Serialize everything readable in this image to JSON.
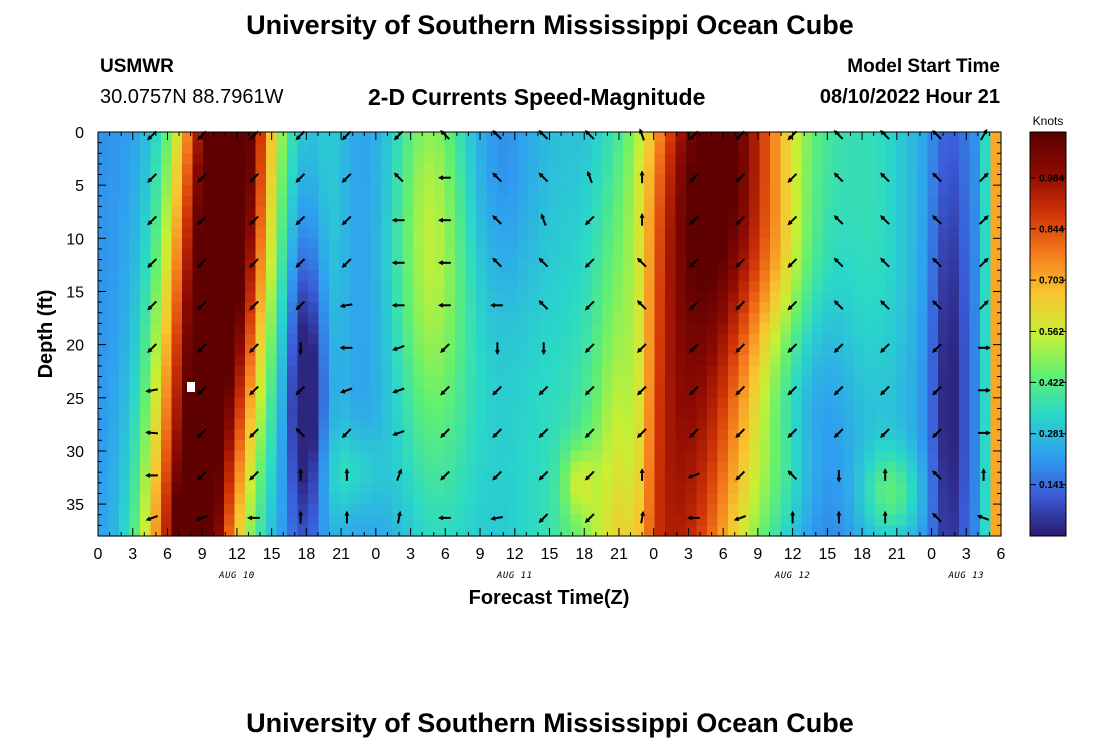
{
  "header": {
    "title": "University of Southern Mississippi Ocean Cube",
    "station": "USMWR",
    "coords": "30.0757N  88.7961W",
    "subtitle": "2-D Currents Speed-Magnitude",
    "model_start_label": "Model Start Time",
    "model_start_value": "08/10/2022 Hour 21"
  },
  "footer": {
    "title": "University of Southern Mississippi Ocean Cube"
  },
  "chart_data": {
    "type": "heatmap",
    "xlabel": "Forecast Time(Z)",
    "ylabel": "Depth (ft)",
    "x_range_hours": [
      0,
      78
    ],
    "y_range_ft": [
      0,
      38
    ],
    "x_tick_labels": [
      "0",
      "3",
      "6",
      "9",
      "12",
      "15",
      "18",
      "21",
      "0",
      "3",
      "6",
      "9",
      "12",
      "15",
      "18",
      "21",
      "0",
      "3",
      "6",
      "9",
      "12",
      "15",
      "18",
      "21",
      "0",
      "3",
      "6"
    ],
    "y_ticks": [
      0,
      5,
      10,
      15,
      20,
      25,
      30,
      35
    ],
    "day_labels": [
      {
        "text": "AUG 10",
        "hour": 12
      },
      {
        "text": "AUG 11",
        "hour": 36
      },
      {
        "text": "AUG 12",
        "hour": 60
      },
      {
        "text": "AUG 13",
        "hour": 75
      }
    ],
    "colorbar": {
      "label": "Knots",
      "min": 0,
      "max": 1.11,
      "tick_values": [
        0.141,
        0.281,
        0.422,
        0.562,
        0.703,
        0.844,
        0.984
      ],
      "tick_labels": [
        "0.141",
        "0.281",
        "0.422",
        "0.562",
        "0.703",
        "0.844",
        "0.984"
      ],
      "colors": [
        "#2a1a6e",
        "#3a5bd6",
        "#2fa0f0",
        "#2ad8c8",
        "#62f070",
        "#c8f034",
        "#f8c530",
        "#f57a1c",
        "#cf3206",
        "#8c0a02",
        "#5a0000"
      ]
    },
    "speed_features": [
      {
        "t": 9.5,
        "d": 20,
        "st": 3.0,
        "sd": 60,
        "amp": 1.0,
        "slope": -0.07
      },
      {
        "t": 12.5,
        "d": 8,
        "st": 2.2,
        "sd": 16,
        "amp": 0.2
      },
      {
        "t": 8.5,
        "d": 36,
        "st": 1.2,
        "sd": 3,
        "amp": 0.2
      },
      {
        "t": 52,
        "d": 15,
        "st": 5.0,
        "sd": 60,
        "amp": 0.8,
        "slope": -0.1
      },
      {
        "t": 53,
        "d": 4,
        "st": 4.0,
        "sd": 10,
        "amp": 0.18
      },
      {
        "t": 20,
        "d": 3,
        "st": 1.3,
        "sd": 40,
        "amp": 0.1
      },
      {
        "t": 28.5,
        "d": 8,
        "st": 2.2,
        "sd": 15,
        "amp": 0.22
      },
      {
        "t": 22,
        "d": 32,
        "st": 2.0,
        "sd": 3,
        "amp": 0.1
      },
      {
        "t": 30,
        "d": 20,
        "st": 3.5,
        "sd": 25,
        "amp": 0.15
      },
      {
        "t": 38,
        "d": 20,
        "st": 3.0,
        "sd": 45,
        "amp": 0.1
      },
      {
        "t": 41.5,
        "d": 33,
        "st": 1.0,
        "sd": 2.5,
        "amp": 0.15
      },
      {
        "t": 59,
        "d": 12,
        "st": 2.2,
        "sd": 6,
        "amp": 0.1
      },
      {
        "t": 60,
        "d": 33,
        "st": 2.5,
        "sd": 5,
        "amp": 0.1
      },
      {
        "t": 68.5,
        "d": 34,
        "st": 1.8,
        "sd": 3,
        "amp": 0.18
      },
      {
        "t": 67,
        "d": 8,
        "st": 3.0,
        "sd": 20,
        "amp": 0.14
      },
      {
        "t": 78,
        "d": 18,
        "st": 0.8,
        "sd": 200,
        "amp": 0.6
      },
      {
        "t": 18,
        "d": 25,
        "st": 1.2,
        "sd": 10,
        "amp": -0.3
      },
      {
        "t": 46.5,
        "d": 30,
        "st": 1.0,
        "sd": 15,
        "amp": -0.18
      },
      {
        "t": 73.5,
        "d": 25,
        "st": 1.2,
        "sd": 20,
        "amp": -0.2
      },
      {
        "t": 35,
        "d": 3,
        "st": 2.5,
        "sd": 10,
        "amp": -0.1
      },
      {
        "t": 62,
        "d": 33,
        "st": 2.5,
        "sd": 10,
        "amp": -0.1
      }
    ],
    "arrow_hours": [
      4.7,
      9,
      13.5,
      17.5,
      21.5,
      26,
      30,
      34.5,
      38.5,
      42.5,
      47,
      51.5,
      55.5,
      60,
      64,
      68,
      72.5,
      76.5
    ],
    "arrow_depths": [
      0,
      4,
      8,
      12,
      16,
      20,
      24,
      28,
      32,
      36
    ],
    "arrow_angles_deg": [
      [
        225,
        225,
        225,
        225,
        225,
        225,
        190,
        175,
        180,
        200
      ],
      [
        225,
        225,
        225,
        225,
        225,
        225,
        225,
        225,
        225,
        200
      ],
      [
        225,
        225,
        225,
        225,
        225,
        225,
        225,
        225,
        225,
        180
      ],
      [
        225,
        225,
        225,
        225,
        225,
        270,
        225,
        135,
        90,
        90
      ],
      [
        225,
        225,
        225,
        225,
        190,
        180,
        200,
        225,
        90,
        90
      ],
      [
        225,
        135,
        180,
        180,
        180,
        200,
        200,
        200,
        70,
        80
      ],
      [
        135,
        180,
        180,
        180,
        180,
        225,
        225,
        225,
        225,
        180
      ],
      [
        135,
        135,
        135,
        135,
        180,
        270,
        225,
        225,
        225,
        190
      ],
      [
        135,
        135,
        110,
        135,
        135,
        270,
        225,
        225,
        225,
        225
      ],
      [
        135,
        110,
        225,
        225,
        225,
        225,
        225,
        225,
        225,
        225
      ],
      [
        110,
        90,
        90,
        135,
        135,
        225,
        225,
        225,
        90,
        80
      ],
      [
        225,
        225,
        225,
        225,
        225,
        225,
        225,
        225,
        200,
        180
      ],
      [
        225,
        225,
        225,
        225,
        225,
        225,
        225,
        225,
        225,
        200
      ],
      [
        225,
        225,
        225,
        225,
        225,
        225,
        225,
        225,
        135,
        90
      ],
      [
        135,
        135,
        135,
        135,
        135,
        225,
        225,
        225,
        270,
        90
      ],
      [
        135,
        135,
        135,
        135,
        135,
        225,
        225,
        225,
        90,
        90
      ],
      [
        135,
        135,
        135,
        135,
        135,
        225,
        225,
        225,
        135,
        135
      ],
      [
        60,
        45,
        45,
        45,
        45,
        0,
        0,
        0,
        90,
        160
      ]
    ]
  }
}
